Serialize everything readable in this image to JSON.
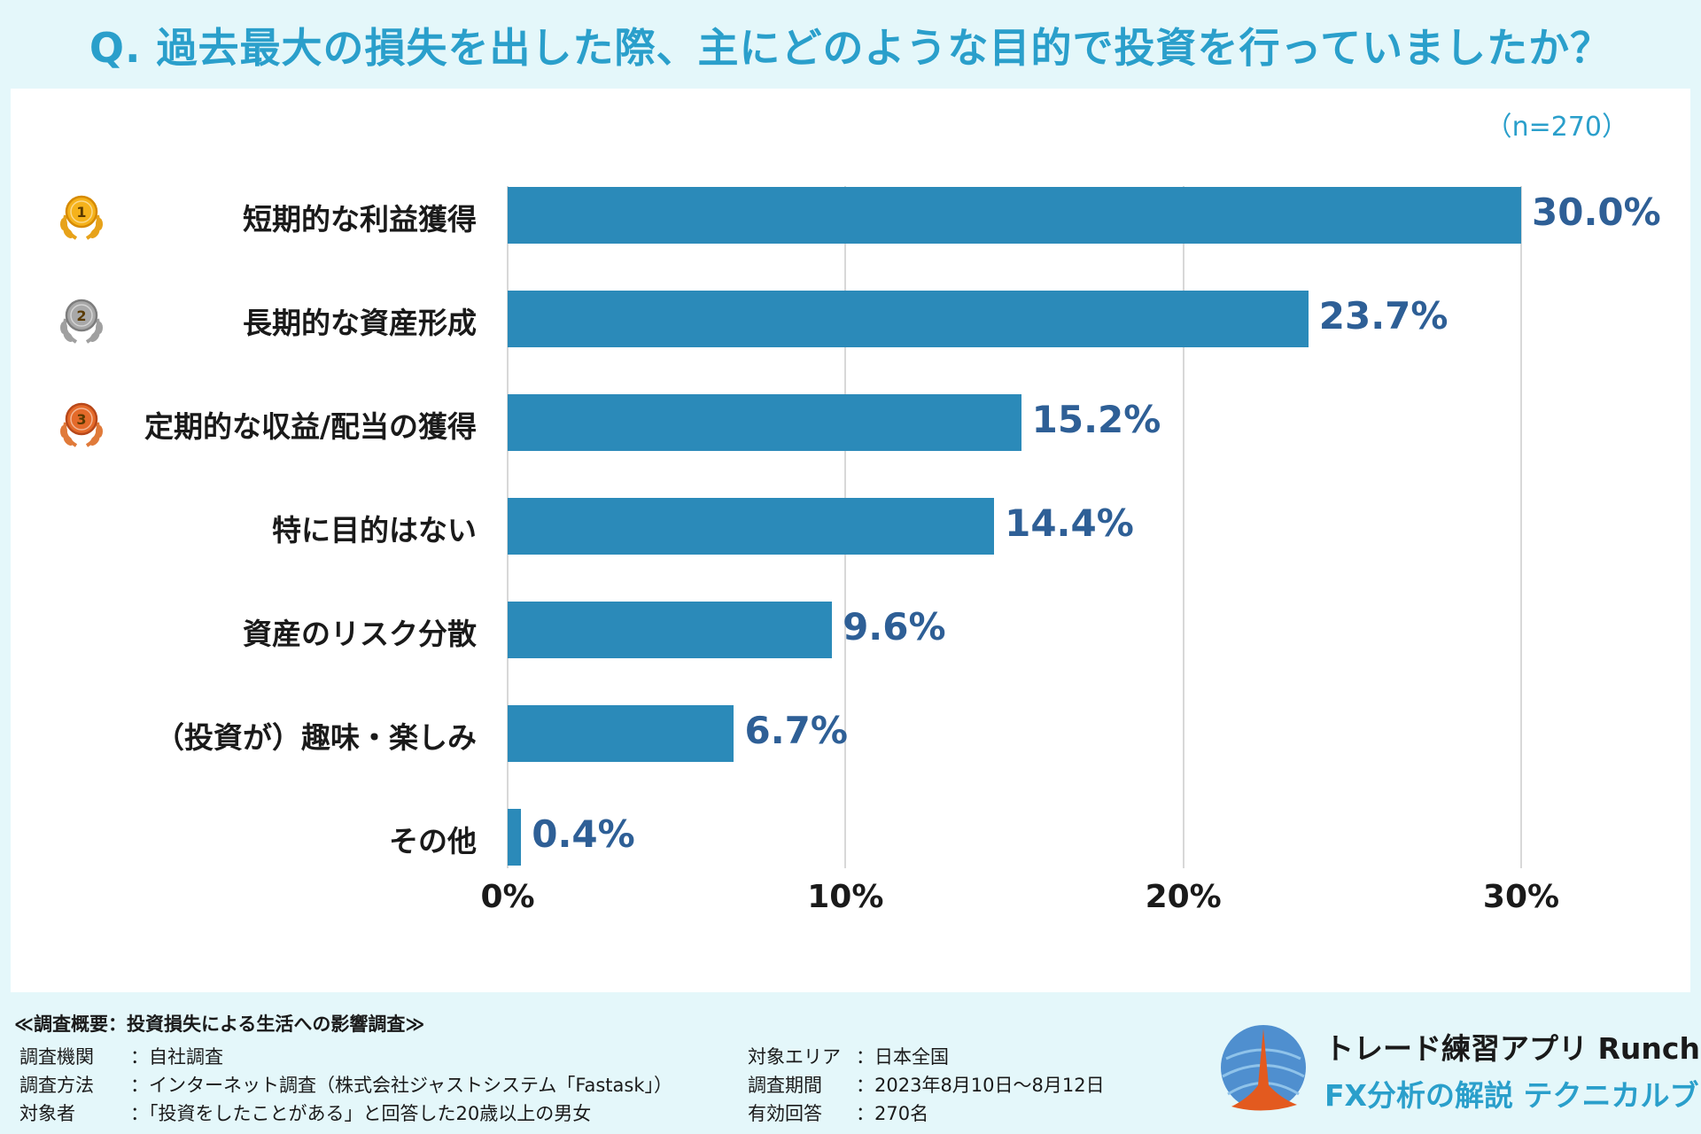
{
  "title": "Q. 過去最大の損失を出した際、主にどのような目的で投資を行っていましたか？",
  "colors": {
    "accent": "#2a9fcb",
    "bar": "#2b8ab9",
    "value_text": "#2e5f96",
    "background": "#e4f7fa"
  },
  "chart_data": {
    "type": "bar",
    "orientation": "horizontal",
    "title": "Q. 過去最大の損失を出した際、主にどのような目的で投資を行っていましたか？",
    "sample": "（n=270）",
    "categories": [
      "短期的な利益獲得",
      "長期的な資産形成",
      "定期的な収益/配当の獲得",
      "特に目的はない",
      "資産のリスク分散",
      "（投資が）趣味・楽しみ",
      "その他"
    ],
    "values": [
      30.0,
      23.7,
      15.2,
      14.4,
      9.6,
      6.7,
      0.4
    ],
    "value_labels": [
      "30.0%",
      "23.7%",
      "15.2%",
      "14.4%",
      "9.6%",
      "6.7%",
      "0.4%"
    ],
    "ranks": [
      "1",
      "2",
      "3",
      "",
      "",
      "",
      ""
    ],
    "rank_icons": [
      "gold-medal-icon",
      "silver-medal-icon",
      "bronze-medal-icon"
    ],
    "xlim": [
      0,
      30
    ],
    "xticks": [
      0,
      10,
      20,
      30
    ],
    "xtick_labels": [
      "0%",
      "10%",
      "20%",
      "30%"
    ],
    "grid": true,
    "xlabel": "",
    "ylabel": ""
  },
  "footer": {
    "survey_title": "≪調査概要：投資損失による生活への影響調査≫",
    "left": [
      {
        "key": "調査機関",
        "value": "：自社調査"
      },
      {
        "key": "調査方法",
        "value": "：インターネット調査（株式会社ジャストシステム「Fastask」）"
      },
      {
        "key": "対象者",
        "value": "：「投資をしたことがある」と回答した20歳以上の男女"
      }
    ],
    "right": [
      {
        "key": "対象エリア",
        "value": "：日本全国"
      },
      {
        "key": "調査期間",
        "value": "：2023年8月10日〜8月12日"
      },
      {
        "key": "有効回答",
        "value": "：270名"
      }
    ]
  },
  "brand": {
    "logo_icon": "runcha-logo-icon",
    "line1": "トレード練習アプリ  Runcha",
    "line2": "FX分析の解説  テクニカルブック"
  }
}
